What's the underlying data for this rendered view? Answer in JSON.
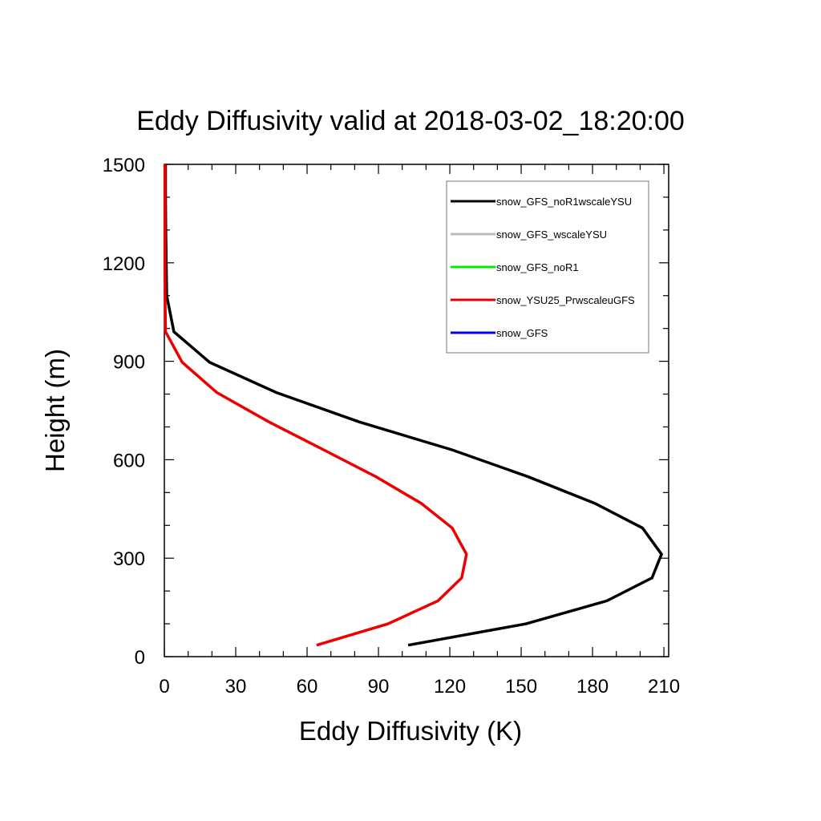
{
  "chart_data": {
    "type": "line",
    "title": "Eddy Diffusivity valid at 2018-03-02_18:20:00",
    "xlabel": "Eddy Diffusivity (K)",
    "ylabel": "Height (m)",
    "xlim": [
      0,
      212
    ],
    "ylim": [
      0,
      1500
    ],
    "xticks": [
      "0",
      "30",
      "60",
      "90",
      "120",
      "150",
      "180",
      "210"
    ],
    "yticks": [
      "0",
      "300",
      "600",
      "900",
      "1200",
      "1500"
    ],
    "xtick_values": [
      0,
      30,
      60,
      90,
      120,
      150,
      180,
      210
    ],
    "ytick_values": [
      0,
      300,
      600,
      900,
      1200,
      1500
    ],
    "grid": false,
    "legend_position": "top-right",
    "series": [
      {
        "name": "snow_GFS_noR1wscaleYSU",
        "color": "#000000",
        "points": [
          [
            102.5,
            35
          ],
          [
            152,
            100
          ],
          [
            186,
            170
          ],
          [
            205,
            240
          ],
          [
            209,
            312
          ],
          [
            201,
            392
          ],
          [
            181,
            467
          ],
          [
            153,
            548
          ],
          [
            121,
            630
          ],
          [
            82,
            715
          ],
          [
            47,
            805
          ],
          [
            19,
            897
          ],
          [
            4,
            990
          ],
          [
            1,
            1100
          ],
          [
            0.8,
            1200
          ],
          [
            0.6,
            1300
          ],
          [
            0.5,
            1400
          ],
          [
            0.5,
            1500
          ]
        ]
      },
      {
        "name": "snow_GFS_wscaleYSU",
        "color": "#bbbbbb",
        "points": []
      },
      {
        "name": "snow_GFS_noR1",
        "color": "#00ee00",
        "points": []
      },
      {
        "name": "snow_YSU25_PrwscaleuGFS",
        "color": "#ee0000",
        "points": [
          [
            64,
            35
          ],
          [
            94,
            100
          ],
          [
            115,
            170
          ],
          [
            125,
            240
          ],
          [
            127,
            312
          ],
          [
            121,
            392
          ],
          [
            108,
            467
          ],
          [
            89,
            548
          ],
          [
            67,
            630
          ],
          [
            44,
            715
          ],
          [
            22,
            805
          ],
          [
            7.5,
            897
          ],
          [
            0.5,
            990
          ],
          [
            0.3,
            1100
          ],
          [
            0.2,
            1200
          ],
          [
            0.2,
            1300
          ],
          [
            0.2,
            1400
          ],
          [
            0.2,
            1500
          ]
        ]
      },
      {
        "name": "snow_GFS",
        "color": "#0000ee",
        "points": []
      }
    ]
  }
}
